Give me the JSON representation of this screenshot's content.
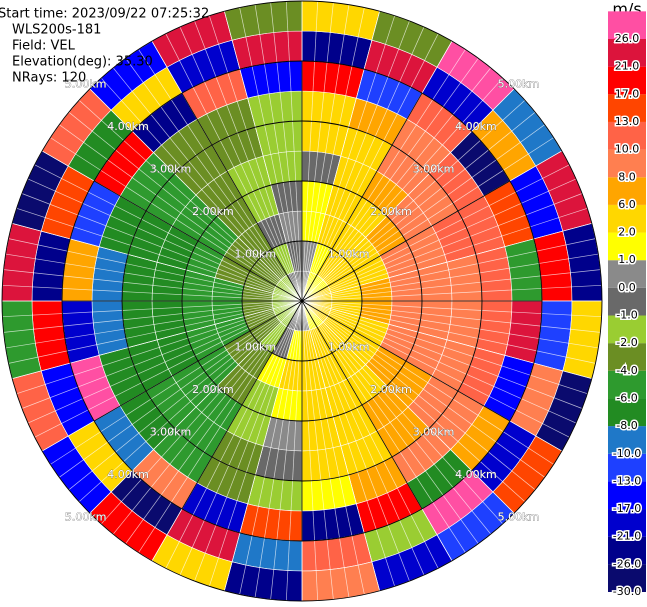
{
  "chart_data": {
    "type": "ppi",
    "header_lines": [
      "Start time: 2023/09/22 07:25:32",
      "WLS200s-181",
      "Field: VEL",
      "Elevation(deg): 35.30",
      "NRays: 120"
    ],
    "colorbar": {
      "label": "m/s",
      "ticks": [
        {
          "value": -30,
          "label": "-30.0"
        },
        {
          "value": -26,
          "label": "-26.0"
        },
        {
          "value": -21,
          "label": "-21.0"
        },
        {
          "value": -17,
          "label": "-17.0"
        },
        {
          "value": -13,
          "label": "-13.0"
        },
        {
          "value": -10,
          "label": "-10.0"
        },
        {
          "value": -8,
          "label": "-8.0"
        },
        {
          "value": -6,
          "label": "-6.0"
        },
        {
          "value": -4,
          "label": "-4.0"
        },
        {
          "value": -2,
          "label": "-2.0"
        },
        {
          "value": -1,
          "label": "-1.0"
        },
        {
          "value": 0,
          "label": "0.0"
        },
        {
          "value": 1,
          "label": "1.0"
        },
        {
          "value": 2,
          "label": "2.0"
        },
        {
          "value": 6,
          "label": "6.0"
        },
        {
          "value": 8,
          "label": "8.0"
        },
        {
          "value": 10,
          "label": "10.0"
        },
        {
          "value": 13,
          "label": "13.0"
        },
        {
          "value": 17,
          "label": "17.0"
        },
        {
          "value": 21,
          "label": "21.0"
        },
        {
          "value": 26,
          "label": "26.0"
        }
      ],
      "colors": [
        "#0a0a6e",
        "#00008b",
        "#0000cd",
        "#0000ff",
        "#1e40ff",
        "#1f78c8",
        "#228b22",
        "#2e9a2e",
        "#6b8e23",
        "#9acd32",
        "#696969",
        "#8a8a8a",
        "#ffff00",
        "#ffd700",
        "#ffa500",
        "#ff7f50",
        "#ff6347",
        "#ff4500",
        "#ff0000",
        "#dc143c",
        "#ff4fa3"
      ]
    },
    "range_rings": [
      {
        "value": 1,
        "label": "1.00km"
      },
      {
        "value": 2,
        "label": "2.00km"
      },
      {
        "value": 3,
        "label": "3.00km"
      },
      {
        "value": 4,
        "label": "4.00km"
      },
      {
        "value": 5,
        "label": "5.00km"
      }
    ],
    "values": [
      [
        0,
        0.5,
        1.5,
        1.5,
        -0.5,
        2,
        3,
        18,
        -22,
        5
      ],
      [
        1,
        1.5,
        3,
        4,
        4,
        5,
        7,
        -12,
        25,
        -3
      ],
      [
        1.5,
        2.5,
        4,
        5,
        6,
        8,
        9,
        11,
        -18,
        28
      ],
      [
        1.5,
        3,
        5,
        7,
        8,
        9,
        10,
        -27,
        7,
        -9
      ],
      [
        2,
        4,
        5,
        8,
        9,
        10,
        11,
        14,
        -15,
        22
      ],
      [
        2,
        4,
        6,
        8,
        9,
        9,
        10,
        -5,
        19,
        -24
      ],
      [
        2,
        4,
        6,
        8,
        9,
        9,
        11,
        23,
        -11,
        3
      ],
      [
        2,
        4,
        5,
        8,
        8,
        9,
        10,
        -16,
        9,
        -28
      ],
      [
        2,
        3,
        4,
        6,
        7,
        9,
        9,
        6,
        -20,
        16
      ],
      [
        1.5,
        3,
        4,
        5,
        6,
        7,
        8,
        -8,
        27,
        -13
      ],
      [
        1,
        2.5,
        4,
        4,
        4,
        5,
        6,
        20,
        -2,
        -19
      ],
      [
        0.5,
        2,
        3.5,
        3,
        2,
        2,
        1.5,
        -25,
        12,
        8
      ],
      [
        -0.5,
        1.5,
        3,
        1.5,
        0.5,
        -0.5,
        -1.5,
        15,
        -9,
        -23
      ],
      [
        -1,
        -0.5,
        1.5,
        -1.5,
        -2,
        -3,
        -3,
        -18,
        24,
        2
      ],
      [
        -1.5,
        -2,
        -3,
        -4,
        -5,
        -5,
        -5,
        9,
        -27,
        17
      ],
      [
        -1.5,
        -3,
        -4,
        -5,
        -6,
        -6,
        -7,
        -10,
        4,
        -15
      ],
      [
        -2,
        -3,
        -5,
        -6,
        -7,
        -7,
        -7,
        26,
        -14,
        11
      ],
      [
        -2,
        -3,
        -5,
        -6,
        -7,
        -7,
        -9,
        -21,
        18,
        -6
      ],
      [
        -2,
        -3,
        -5,
        -6,
        -7,
        -7,
        -9,
        7,
        -25,
        21
      ],
      [
        -2,
        -3,
        -4,
        -6,
        -7,
        -7,
        -7,
        -12,
        14,
        -29
      ],
      [
        -1.5,
        -3,
        -4,
        -5,
        -5,
        -5,
        -5,
        19,
        -7,
        12
      ],
      [
        -1.5,
        -2.5,
        -3,
        -3,
        -3,
        -3,
        -3,
        -23,
        3,
        -17
      ],
      [
        -1,
        -1.5,
        -0.5,
        -1.5,
        -2,
        -3,
        -3,
        10,
        -19,
        25
      ],
      [
        -0.5,
        -0.5,
        0.5,
        -0.5,
        -1.5,
        -1.5,
        -1.5,
        -14,
        22,
        -4
      ]
    ]
  }
}
